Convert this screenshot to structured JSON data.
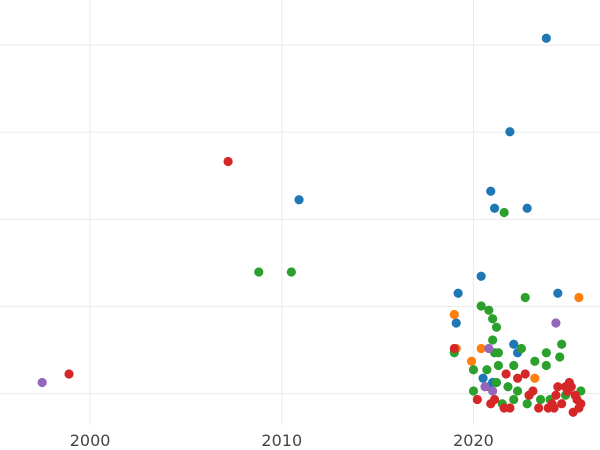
{
  "chart_data": {
    "type": "scatter",
    "title": "",
    "xlabel": "",
    "ylabel": "",
    "xlim": [
      1995.3,
      2026.6
    ],
    "ylim": [
      0.0,
      1.0
    ],
    "x_ticks": [
      2000,
      2010,
      2020
    ],
    "x_tick_labels": [
      "2000",
      "2010",
      "2020"
    ],
    "y_gridlines": [
      0.074,
      0.279,
      0.484,
      0.689,
      0.894
    ],
    "y_tick_labels_visible": false,
    "grid": true,
    "legend": "none",
    "colors": {
      "blue": "#1f77b4",
      "orange": "#ff7f0e",
      "green": "#2ca02c",
      "red": "#d62728",
      "purple": "#9467bd"
    },
    "series": [
      {
        "color": "#1f77b4",
        "points": [
          [
            2023.8,
            0.91
          ],
          [
            2021.9,
            0.69
          ],
          [
            2020.9,
            0.55
          ],
          [
            2021.1,
            0.51
          ],
          [
            2022.8,
            0.51
          ],
          [
            2010.9,
            0.53
          ],
          [
            2020.4,
            0.35
          ],
          [
            2019.2,
            0.31
          ],
          [
            2024.4,
            0.31
          ],
          [
            2019.1,
            0.24
          ],
          [
            2022.1,
            0.19
          ],
          [
            2022.3,
            0.17
          ],
          [
            2020.5,
            0.11
          ],
          [
            2021.0,
            0.1
          ],
          [
            2020.8,
            0.09
          ]
        ]
      },
      {
        "color": "#ff7f0e",
        "points": [
          [
            2025.5,
            0.3
          ],
          [
            2019.0,
            0.26
          ],
          [
            2020.4,
            0.18
          ],
          [
            2019.9,
            0.15
          ],
          [
            2023.2,
            0.11
          ],
          [
            2019.1,
            0.18
          ]
        ]
      },
      {
        "color": "#2ca02c",
        "points": [
          [
            2008.8,
            0.36
          ],
          [
            2010.5,
            0.36
          ],
          [
            2021.6,
            0.5
          ],
          [
            2022.7,
            0.3
          ],
          [
            2020.4,
            0.28
          ],
          [
            2020.8,
            0.27
          ],
          [
            2021.0,
            0.25
          ],
          [
            2021.2,
            0.23
          ],
          [
            2021.0,
            0.2
          ],
          [
            2022.5,
            0.18
          ],
          [
            2023.8,
            0.17
          ],
          [
            2024.6,
            0.19
          ],
          [
            2021.1,
            0.17
          ],
          [
            2021.3,
            0.17
          ],
          [
            2019.0,
            0.17
          ],
          [
            2020.0,
            0.13
          ],
          [
            2020.7,
            0.13
          ],
          [
            2021.3,
            0.14
          ],
          [
            2022.1,
            0.14
          ],
          [
            2023.2,
            0.15
          ],
          [
            2023.8,
            0.14
          ],
          [
            2024.5,
            0.16
          ],
          [
            2020.0,
            0.08
          ],
          [
            2021.2,
            0.1
          ],
          [
            2021.8,
            0.09
          ],
          [
            2022.3,
            0.08
          ],
          [
            2022.9,
            0.07
          ],
          [
            2023.5,
            0.06
          ],
          [
            2024.0,
            0.06
          ],
          [
            2021.5,
            0.05
          ],
          [
            2022.1,
            0.06
          ],
          [
            2022.8,
            0.05
          ],
          [
            2024.8,
            0.07
          ],
          [
            2025.6,
            0.08
          ]
        ]
      },
      {
        "color": "#d62728",
        "points": [
          [
            2007.2,
            0.62
          ],
          [
            1998.9,
            0.12
          ],
          [
            2019.0,
            0.18
          ],
          [
            2020.2,
            0.06
          ],
          [
            2020.9,
            0.05
          ],
          [
            2021.6,
            0.04
          ],
          [
            2021.7,
            0.12
          ],
          [
            2022.3,
            0.11
          ],
          [
            2022.7,
            0.12
          ],
          [
            2022.9,
            0.07
          ],
          [
            2023.4,
            0.04
          ],
          [
            2023.9,
            0.04
          ],
          [
            2024.2,
            0.04
          ],
          [
            2024.3,
            0.07
          ],
          [
            2024.6,
            0.05
          ],
          [
            2024.9,
            0.08
          ],
          [
            2025.1,
            0.09
          ],
          [
            2025.3,
            0.07
          ],
          [
            2025.4,
            0.06
          ],
          [
            2025.5,
            0.04
          ],
          [
            2025.2,
            0.03
          ],
          [
            2024.8,
            0.09
          ],
          [
            2021.9,
            0.04
          ],
          [
            2021.1,
            0.06
          ],
          [
            2025.0,
            0.1
          ],
          [
            2025.6,
            0.05
          ],
          [
            2024.4,
            0.09
          ],
          [
            2023.1,
            0.08
          ],
          [
            2024.1,
            0.05
          ]
        ]
      },
      {
        "color": "#9467bd",
        "points": [
          [
            1997.5,
            0.1
          ],
          [
            2024.3,
            0.24
          ],
          [
            2020.8,
            0.18
          ],
          [
            2020.6,
            0.09
          ],
          [
            2021.0,
            0.08
          ]
        ]
      }
    ]
  }
}
